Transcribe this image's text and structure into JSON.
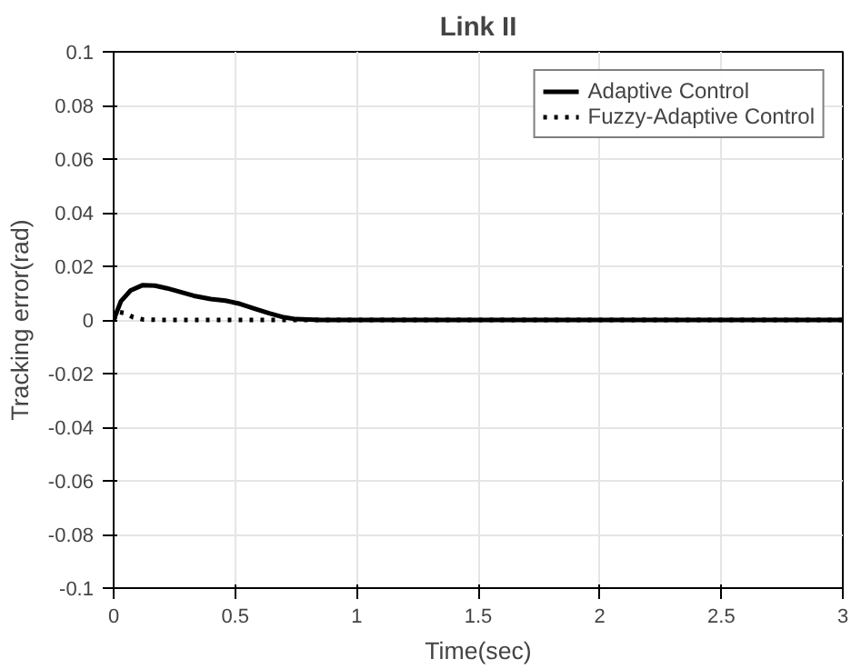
{
  "chart_data": {
    "type": "line",
    "title": "Link II",
    "xlabel": "Time(sec)",
    "ylabel": "Tracking error(rad)",
    "xlim": [
      0,
      3
    ],
    "ylim": [
      -0.1,
      0.1
    ],
    "xticks": [
      0,
      0.5,
      1,
      1.5,
      2,
      2.5,
      3
    ],
    "yticks": [
      -0.1,
      -0.08,
      -0.06,
      -0.04,
      -0.02,
      0,
      0.02,
      0.04,
      0.06,
      0.08,
      0.1
    ],
    "grid": true,
    "legend": "top right",
    "series": [
      {
        "name": "Adaptive Control",
        "color": "#000000",
        "line_style": "solid",
        "x": [
          0,
          0.03,
          0.07,
          0.12,
          0.17,
          0.22,
          0.28,
          0.33,
          0.4,
          0.46,
          0.52,
          0.58,
          0.64,
          0.7,
          0.75,
          0.85,
          1,
          1.5,
          2,
          2.5,
          3
        ],
        "values": [
          0,
          0.007,
          0.011,
          0.013,
          0.0128,
          0.0118,
          0.0103,
          0.009,
          0.0078,
          0.0072,
          0.006,
          0.0042,
          0.0025,
          0.001,
          0.0003,
          0,
          0,
          0,
          0,
          0,
          0
        ]
      },
      {
        "name": "Fuzzy-Adaptive Control",
        "color": "#000000",
        "line_style": "dotted",
        "x": [
          0,
          0.02,
          0.05,
          0.08,
          0.12,
          0.2,
          0.5,
          1,
          2,
          3
        ],
        "values": [
          0,
          0.003,
          0.0025,
          0.001,
          0.0002,
          0,
          0,
          0,
          0,
          0
        ]
      }
    ]
  }
}
